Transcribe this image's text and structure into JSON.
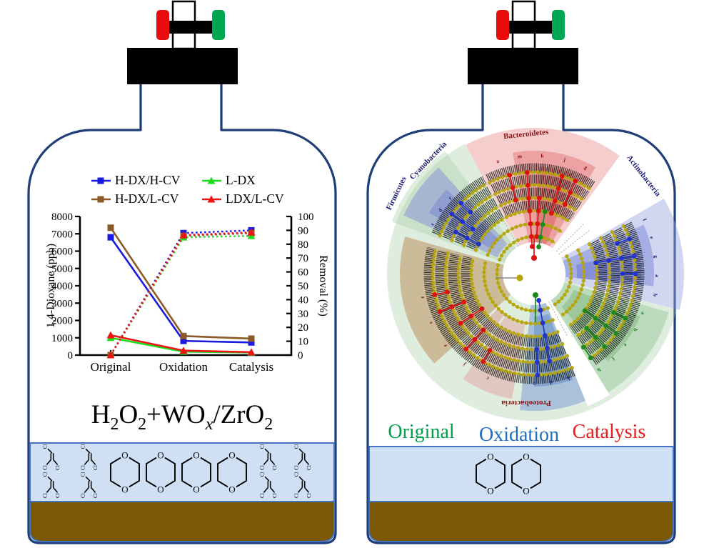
{
  "chart_data": {
    "type": "line",
    "title": "",
    "categories": [
      "Original",
      "Oxidation",
      "Catalysis"
    ],
    "left_axis": {
      "label": "1,4-Dioxane (ppb)",
      "min": 0,
      "max": 8000,
      "step": 1000
    },
    "right_axis": {
      "label": "Removal (%)",
      "min": 0,
      "max": 100,
      "step": 10
    },
    "series": [
      {
        "name": "H-DX/H-CV",
        "color": "#1a1ae0",
        "marker": "square",
        "axis": "left",
        "style": "solid",
        "values": [
          6800,
          820,
          730
        ]
      },
      {
        "name": "H-DX/L-CV",
        "color": "#8c5a28",
        "marker": "square",
        "axis": "left",
        "style": "solid",
        "values": [
          7350,
          1100,
          950
        ]
      },
      {
        "name": "L-DX",
        "color": "#1ddd1d",
        "marker": "triangle",
        "axis": "left",
        "style": "solid",
        "values": [
          1000,
          200,
          150
        ]
      },
      {
        "name": "LDX/L-CV",
        "color": "#ee1414",
        "marker": "triangle",
        "axis": "left",
        "style": "solid",
        "values": [
          1150,
          260,
          170
        ]
      },
      {
        "name": "H-DX/H-CV removal",
        "color": "#1a1ae0",
        "marker": "square",
        "axis": "right",
        "style": "dotted",
        "values": [
          0,
          88,
          90
        ]
      },
      {
        "name": "H-DX/L-CV removal",
        "color": "#8c5a28",
        "marker": "square",
        "axis": "right",
        "style": "dotted",
        "values": [
          0,
          86,
          88
        ]
      },
      {
        "name": "L-DX removal",
        "color": "#1ddd1d",
        "marker": "triangle",
        "axis": "right",
        "style": "dotted",
        "values": [
          0,
          85,
          86
        ]
      },
      {
        "name": "LDX/L-CV removal",
        "color": "#ee1414",
        "marker": "triangle",
        "axis": "right",
        "style": "dotted",
        "values": [
          0,
          86.5,
          88.5
        ]
      }
    ],
    "legend_order": [
      0,
      2,
      1,
      3
    ],
    "legend_position": "top"
  },
  "left_bottle": {
    "formula_parts": {
      "f1": "H",
      "f1s": "2",
      "f2": "O",
      "f2s": "2",
      "f3": "+WO",
      "f3s": "x",
      "f4": "/ZrO",
      "f4s": "2"
    },
    "molecules": {
      "oxygen": "O",
      "chlorine": "Cl",
      "dioxane_count": 4,
      "chlorinated_count": 8
    }
  },
  "right_bottle": {
    "cladogram": {
      "phyla": [
        {
          "label": "Bacteroidetes",
          "color": "#8b1515"
        },
        {
          "label": "Actinobacteria",
          "color": "#1a1a70"
        },
        {
          "label": "Cyanobacteria",
          "color": "#1a1a70"
        },
        {
          "label": "Firmicutes",
          "color": "#1a1a70"
        },
        {
          "label": "Proteobacteria",
          "color": "#8b1515"
        }
      ],
      "node_colors": {
        "original": "#1e8a1e",
        "oxidation": "#2233cc",
        "catalysis": "#dd1111",
        "backbone": "#b5a50a"
      },
      "node_letters": [
        {
          "chars": [
            "a",
            "m",
            "k",
            "j",
            "g"
          ],
          "b0": -18,
          "b1": 26,
          "r": 163,
          "color": "#8b1515"
        },
        {
          "chars": [
            "f",
            "e",
            "g",
            "a",
            "b"
          ],
          "b0": 64,
          "b1": 100,
          "r": 170,
          "color": "#1a1a70"
        },
        {
          "chars": [
            "a",
            "b",
            "e",
            "f",
            "h"
          ],
          "b0": 110,
          "b1": 146,
          "r": 160,
          "color": "#1e7a1e"
        },
        {
          "chars": [
            "k",
            "d",
            "p"
          ],
          "b0": 162,
          "b1": 180,
          "r": 152,
          "color": "#1a1a70"
        },
        {
          "chars": [
            "c",
            "j",
            "e",
            "s",
            "z"
          ],
          "b0": 204,
          "b1": 258,
          "r": 158,
          "color": "#8b1515"
        },
        {
          "chars": [
            "c",
            "d",
            "r"
          ],
          "b0": 296,
          "b1": 312,
          "r": 156,
          "color": "#1a1a70"
        }
      ]
    },
    "legend": [
      {
        "label": "Original",
        "color": "#00a14b"
      },
      {
        "label": "Oxidation",
        "color": "#1f6fc0"
      },
      {
        "label": "Catalysis",
        "color": "#f01818"
      }
    ],
    "molecules": {
      "oxygen": "O",
      "dioxane_count": 2
    }
  },
  "apparatus_colors": {
    "valve_red": "#e80c0c",
    "valve_green": "#00a651",
    "cap": "#000000",
    "bottle_outline": "#1f3e78",
    "liquid": "#cfe0f5",
    "liquid_border": "#4472c4",
    "sediment": "#7b5804"
  }
}
